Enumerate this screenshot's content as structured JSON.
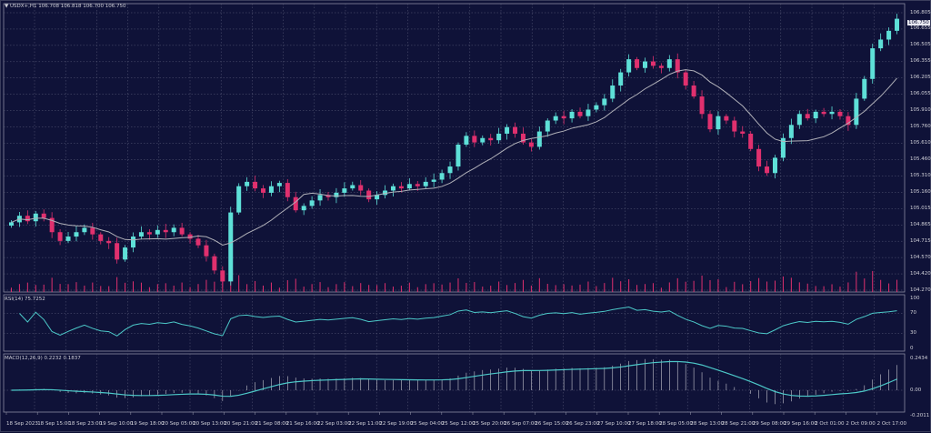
{
  "header": {
    "symbol": "USDX+,H1",
    "ohlc": "106.708 106.818 106.700 106.750"
  },
  "rsi": {
    "label": "RSI(14) 75.7252",
    "levels": [
      "100",
      "70",
      "30",
      "0"
    ]
  },
  "macd": {
    "label": "MACD(12,26,9) 0.2232 0.1837",
    "levels": [
      "0.2434",
      "0.00",
      "-0.2011"
    ]
  },
  "current_price": "106.750",
  "price_axis": [
    "106.805",
    "106.655",
    "106.505",
    "106.355",
    "106.205",
    "106.055",
    "105.910",
    "105.760",
    "105.610",
    "105.460",
    "105.310",
    "105.160",
    "105.015",
    "104.865",
    "104.715",
    "104.570",
    "104.420",
    "104.270"
  ],
  "time_axis": [
    "18 Sep 2023",
    "18 Sep 15:00",
    "18 Sep 23:00",
    "19 Sep 10:00",
    "19 Sep 18:00",
    "20 Sep 05:00",
    "20 Sep 13:00",
    "20 Sep 21:00",
    "21 Sep 08:00",
    "21 Sep 16:00",
    "22 Sep 03:00",
    "22 Sep 11:00",
    "22 Sep 19:00",
    "25 Sep 04:00",
    "25 Sep 12:00",
    "25 Sep 20:00",
    "26 Sep 07:00",
    "26 Sep 15:00",
    "26 Sep 23:00",
    "27 Sep 10:00",
    "27 Sep 18:00",
    "28 Sep 05:00",
    "28 Sep 13:00",
    "28 Sep 21:00",
    "29 Sep 08:00",
    "29 Sep 16:00",
    "2 Oct 01:00",
    "2 Oct 09:00",
    "2 Oct 17:00"
  ],
  "colors": {
    "background": "#0f1238",
    "bull": "#5ee0d8",
    "bear": "#e0306e",
    "ma": "#b0b0b8",
    "indicator": "#4cc8c8",
    "grid": "#5a5d7a"
  },
  "chart_data": {
    "type": "candlestick",
    "timeframe": "H1",
    "ylim": [
      104.27,
      106.805
    ],
    "grid": true,
    "close": [
      104.89,
      104.95,
      104.9,
      104.97,
      104.93,
      104.8,
      104.72,
      104.76,
      104.8,
      104.84,
      104.78,
      104.72,
      104.7,
      104.55,
      104.66,
      104.76,
      104.8,
      104.78,
      104.82,
      104.8,
      104.84,
      104.78,
      104.74,
      104.68,
      104.58,
      104.45,
      104.35,
      104.98,
      105.22,
      105.26,
      105.2,
      105.16,
      105.22,
      105.25,
      105.12,
      105.0,
      105.04,
      105.09,
      105.14,
      105.12,
      105.16,
      105.2,
      105.23,
      105.18,
      105.1,
      105.14,
      105.18,
      105.22,
      105.2,
      105.24,
      105.22,
      105.26,
      105.28,
      105.34,
      105.4,
      105.6,
      105.68,
      105.62,
      105.66,
      105.64,
      105.7,
      105.76,
      105.7,
      105.62,
      105.58,
      105.72,
      105.82,
      105.86,
      105.84,
      105.9,
      105.86,
      105.92,
      105.96,
      106.02,
      106.14,
      106.26,
      106.38,
      106.3,
      106.36,
      106.32,
      106.3,
      106.38,
      106.26,
      106.14,
      106.04,
      105.88,
      105.74,
      105.86,
      105.82,
      105.72,
      105.7,
      105.56,
      105.4,
      105.34,
      105.48,
      105.66,
      105.78,
      105.88,
      105.84,
      105.9,
      105.88,
      105.9,
      105.86,
      105.78,
      106.02,
      106.2,
      106.48,
      106.56,
      106.64,
      106.75
    ]
  }
}
